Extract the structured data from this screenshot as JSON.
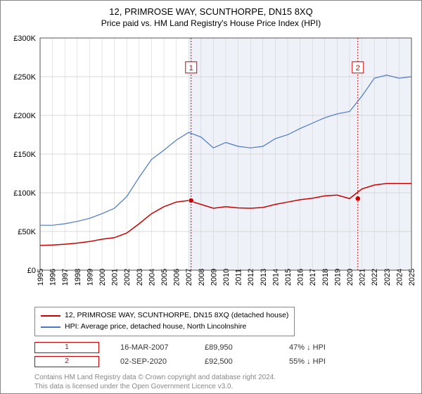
{
  "title": "12, PRIMROSE WAY, SCUNTHORPE, DN15 8XQ",
  "subtitle": "Price paid vs. HM Land Registry's House Price Index (HPI)",
  "chart": {
    "type": "line",
    "background_color": "#ffffff",
    "shaded_band_color": "#eef2f8",
    "grid_color": "#cccccc",
    "axis_color": "#555555",
    "title_fontsize": 13,
    "label_fontsize": 11,
    "x_years": [
      1995,
      1996,
      1997,
      1998,
      1999,
      2000,
      2001,
      2002,
      2003,
      2004,
      2005,
      2006,
      2007,
      2008,
      2009,
      2010,
      2011,
      2012,
      2013,
      2014,
      2015,
      2016,
      2017,
      2018,
      2019,
      2020,
      2021,
      2022,
      2023,
      2024,
      2025
    ],
    "ylim": [
      0,
      300000
    ],
    "ytick_step": 50000,
    "ytick_labels": [
      "£0",
      "£50K",
      "£100K",
      "£150K",
      "£200K",
      "£250K",
      "£300K"
    ],
    "shaded_from_year": 2007,
    "series": [
      {
        "name": "price_paid",
        "legend": "12, PRIMROSE WAY, SCUNTHORPE, DN15 8XQ (detached house)",
        "color": "#cc0000",
        "line_width": 1.5,
        "points": [
          [
            1995,
            32000
          ],
          [
            1996,
            32500
          ],
          [
            1997,
            33500
          ],
          [
            1998,
            35000
          ],
          [
            1999,
            37000
          ],
          [
            2000,
            40000
          ],
          [
            2001,
            42000
          ],
          [
            2002,
            48000
          ],
          [
            2003,
            60000
          ],
          [
            2004,
            73000
          ],
          [
            2005,
            82000
          ],
          [
            2006,
            88000
          ],
          [
            2007,
            89950
          ],
          [
            2008,
            85000
          ],
          [
            2009,
            80000
          ],
          [
            2010,
            82000
          ],
          [
            2011,
            80500
          ],
          [
            2012,
            80000
          ],
          [
            2013,
            81000
          ],
          [
            2014,
            85000
          ],
          [
            2015,
            88000
          ],
          [
            2016,
            91000
          ],
          [
            2017,
            93000
          ],
          [
            2018,
            96000
          ],
          [
            2019,
            97000
          ],
          [
            2020,
            92500
          ],
          [
            2021,
            105000
          ],
          [
            2022,
            110000
          ],
          [
            2023,
            112000
          ],
          [
            2024,
            112000
          ],
          [
            2025,
            112000
          ]
        ]
      },
      {
        "name": "hpi",
        "legend": "HPI: Average price, detached house, North Lincolnshire",
        "color": "#4a78c8",
        "line_width": 1.2,
        "points": [
          [
            1995,
            58000
          ],
          [
            1996,
            58000
          ],
          [
            1997,
            60000
          ],
          [
            1998,
            63000
          ],
          [
            1999,
            67000
          ],
          [
            2000,
            73000
          ],
          [
            2001,
            80000
          ],
          [
            2002,
            95000
          ],
          [
            2003,
            120000
          ],
          [
            2004,
            143000
          ],
          [
            2005,
            155000
          ],
          [
            2006,
            168000
          ],
          [
            2007,
            178000
          ],
          [
            2008,
            172000
          ],
          [
            2009,
            158000
          ],
          [
            2010,
            165000
          ],
          [
            2011,
            160000
          ],
          [
            2012,
            158000
          ],
          [
            2013,
            160000
          ],
          [
            2014,
            170000
          ],
          [
            2015,
            175000
          ],
          [
            2016,
            183000
          ],
          [
            2017,
            190000
          ],
          [
            2018,
            197000
          ],
          [
            2019,
            202000
          ],
          [
            2020,
            205000
          ],
          [
            2021,
            225000
          ],
          [
            2022,
            248000
          ],
          [
            2023,
            252000
          ],
          [
            2024,
            248000
          ],
          [
            2025,
            250000
          ]
        ]
      }
    ],
    "markers": [
      {
        "n": "1",
        "year": 2007.2,
        "value": 89950,
        "label_y": 262000
      },
      {
        "n": "2",
        "year": 2020.67,
        "value": 92500,
        "label_y": 262000
      }
    ],
    "marker_line_color": "#cc0000",
    "marker_box_border": "#cc0000",
    "marker_dot_fill": "#cc0000"
  },
  "legend": {
    "border_color": "#888888",
    "series1_text": "12, PRIMROSE WAY, SCUNTHORPE, DN15 8XQ (detached house)",
    "series2_text": "HPI: Average price, detached house, North Lincolnshire"
  },
  "transactions": [
    {
      "n": "1",
      "date": "16-MAR-2007",
      "price": "£89,950",
      "diff": "47% ↓ HPI"
    },
    {
      "n": "2",
      "date": "02-SEP-2020",
      "price": "£92,500",
      "diff": "55% ↓ HPI"
    }
  ],
  "footer": {
    "line1": "Contains HM Land Registry data © Crown copyright and database right 2024.",
    "line2": "This data is licensed under the Open Government Licence v3.0."
  }
}
